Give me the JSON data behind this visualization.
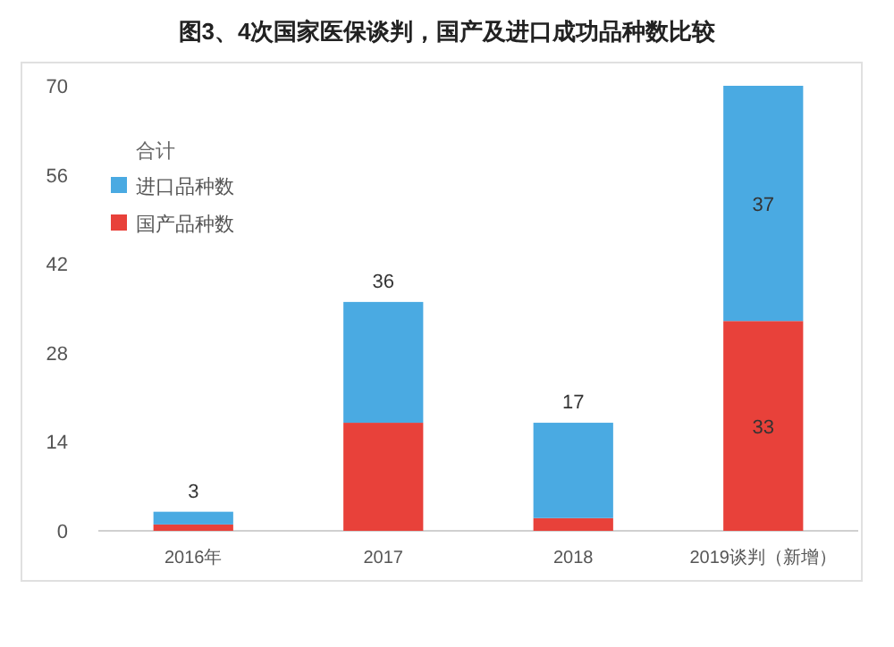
{
  "chart_data": {
    "type": "bar",
    "title": "图3、4次国家医保谈判，国产及进口成功品种数比较",
    "categories": [
      "2016年",
      "2017",
      "2018",
      "2019谈判（新增）"
    ],
    "stacked": true,
    "series": [
      {
        "name": "国产品种数",
        "color": "#e8413a",
        "values": [
          1,
          17,
          2,
          33
        ],
        "value_labels": [
          null,
          null,
          null,
          "33"
        ]
      },
      {
        "name": "进口品种数",
        "color": "#4aaae2",
        "values": [
          2,
          19,
          15,
          37
        ],
        "value_labels": [
          null,
          null,
          null,
          "37"
        ]
      }
    ],
    "totals": [
      "3",
      "36",
      "17",
      null
    ],
    "legend_title": "合计",
    "legend": "top left",
    "ylim": [
      0,
      70
    ],
    "yticks": [
      0,
      14,
      28,
      42,
      56,
      70
    ],
    "grid": false
  }
}
